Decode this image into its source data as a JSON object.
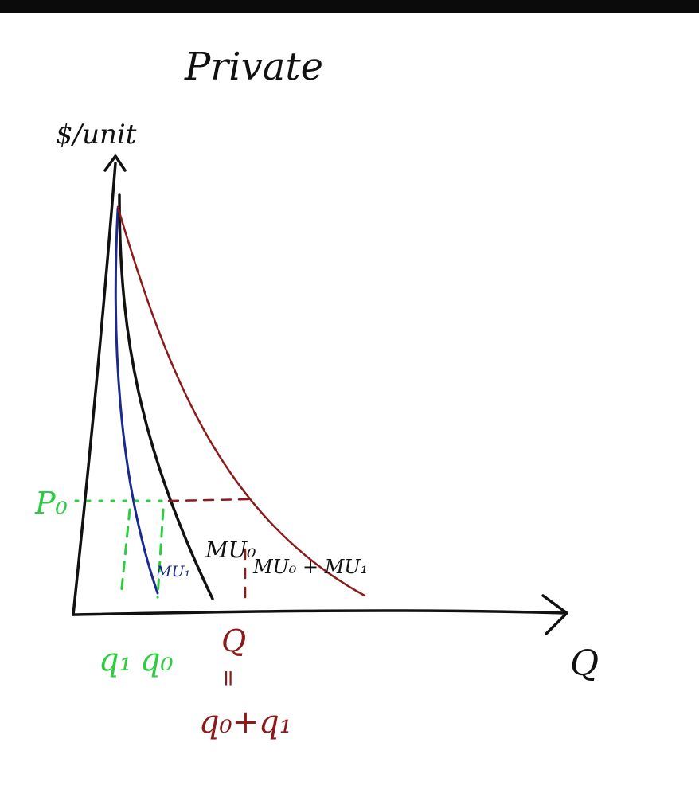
{
  "title": "Private",
  "axes": {
    "y_label": "$/unit",
    "x_label": "Q"
  },
  "price_label": "P₀",
  "curve_labels": {
    "blue": "MU₁",
    "black": "MU₀",
    "red": "MU₀ + MU₁"
  },
  "x_markers": {
    "q1": "q₁",
    "q0": "q₀",
    "Q": "Q",
    "equals": "=",
    "sum": "q₀+q₁"
  },
  "colors": {
    "green": "#2ecc40",
    "blue": "#1b2a8c",
    "black": "#111111",
    "red": "#8b1a1a",
    "axis": "#111111"
  }
}
